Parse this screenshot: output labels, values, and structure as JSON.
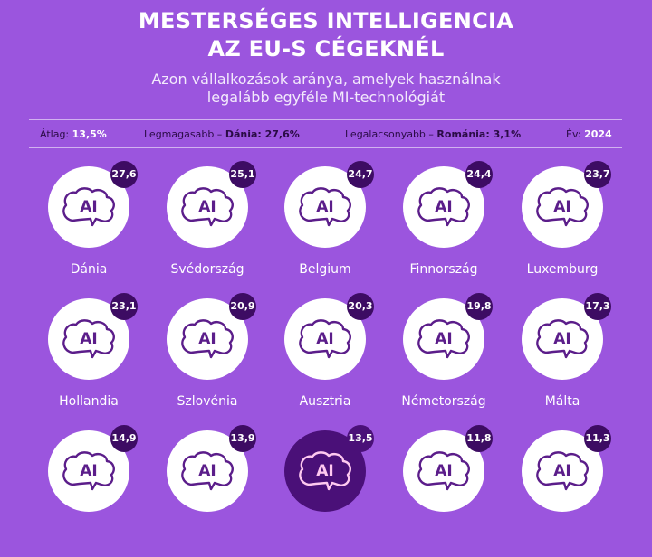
{
  "title_line1": "MESTERSÉGES INTELLIGENCIA",
  "title_line2": "AZ EU-S CÉGEKNÉL",
  "subtitle_line1": "Azon vállalkozások aránya, amelyek használnak",
  "subtitle_line2": "legalább egyféle MI-technológiát",
  "stats": {
    "avg_label": "Átlag:",
    "avg_value": "13,5%",
    "high_label": "Legmagasabb –",
    "high_value": "Dánia: 27,6%",
    "low_label": "Legalacsonyabb –",
    "low_value": "Románia: 3,1%",
    "year_label": "Év:",
    "year_value": "2024"
  },
  "colors": {
    "background": "#9b55de",
    "circle": "#ffffff",
    "highlight_circle": "#4a1078",
    "icon": "#5b1d8a",
    "badge": "#3d0c63"
  },
  "icon_name": "brain-ai-icon",
  "chart_data": {
    "type": "table",
    "unit": "%",
    "highlight_index": 12,
    "items": [
      {
        "name": "Dánia",
        "label": "27,6",
        "value": 27.6
      },
      {
        "name": "Svédország",
        "label": "25,1",
        "value": 25.1
      },
      {
        "name": "Belgium",
        "label": "24,7",
        "value": 24.7
      },
      {
        "name": "Finnország",
        "label": "24,4",
        "value": 24.4
      },
      {
        "name": "Luxemburg",
        "label": "23,7",
        "value": 23.7
      },
      {
        "name": "Hollandia",
        "label": "23,1",
        "value": 23.1
      },
      {
        "name": "Szlovénia",
        "label": "20,9",
        "value": 20.9
      },
      {
        "name": "Ausztria",
        "label": "20,3",
        "value": 20.3
      },
      {
        "name": "Németország",
        "label": "19,8",
        "value": 19.8
      },
      {
        "name": "Málta",
        "label": "17,3",
        "value": 17.3
      },
      {
        "name": "",
        "label": "14,9",
        "value": 14.9
      },
      {
        "name": "",
        "label": "13,9",
        "value": 13.9
      },
      {
        "name": "",
        "label": "13,5",
        "value": 13.5
      },
      {
        "name": "",
        "label": "11,8",
        "value": 11.8
      },
      {
        "name": "",
        "label": "11,3",
        "value": 11.3
      }
    ]
  }
}
